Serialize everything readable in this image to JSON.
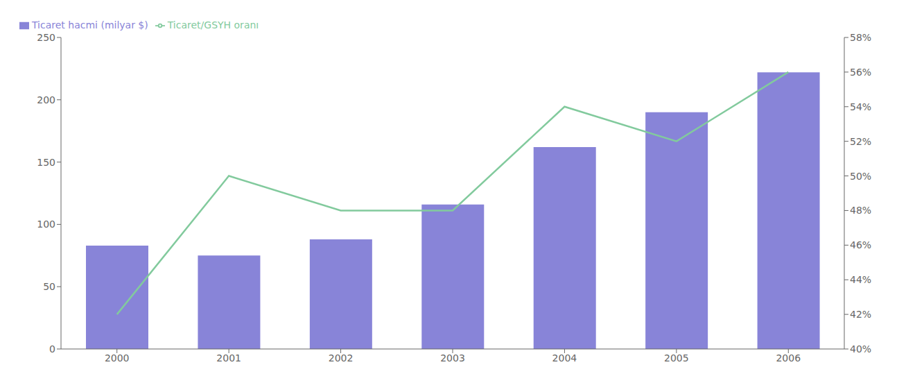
{
  "chart_data": {
    "type": "bar",
    "categories": [
      "2000",
      "2001",
      "2002",
      "2003",
      "2004",
      "2005",
      "2006"
    ],
    "series": [
      {
        "name": "Ticaret hacmi (milyar $)",
        "type": "bar",
        "color": "#8884d8",
        "values": [
          83,
          75,
          88,
          116,
          162,
          190,
          222
        ]
      },
      {
        "name": "Ticaret/GSYH oranı",
        "type": "line",
        "axis": "y2",
        "color": "#82ca9d",
        "values": [
          42,
          50,
          48,
          48,
          54,
          52,
          56
        ]
      }
    ],
    "ylim": [
      0,
      250
    ],
    "yticks": [
      0,
      50,
      100,
      150,
      200,
      250
    ],
    "y2lim": [
      40,
      58
    ],
    "y2ticks": [
      {
        "value": 40,
        "label": "40%"
      },
      {
        "value": 42,
        "label": "42%"
      },
      {
        "value": 44,
        "label": "44%"
      },
      {
        "value": 46,
        "label": "46%"
      },
      {
        "value": 48,
        "label": "48%"
      },
      {
        "value": 50,
        "label": "50%"
      },
      {
        "value": 52,
        "label": "52%"
      },
      {
        "value": 54,
        "label": "54%"
      },
      {
        "value": 56,
        "label": "56%"
      },
      {
        "value": 58,
        "label": "58%"
      }
    ],
    "grid": false,
    "legend": "upper left"
  }
}
